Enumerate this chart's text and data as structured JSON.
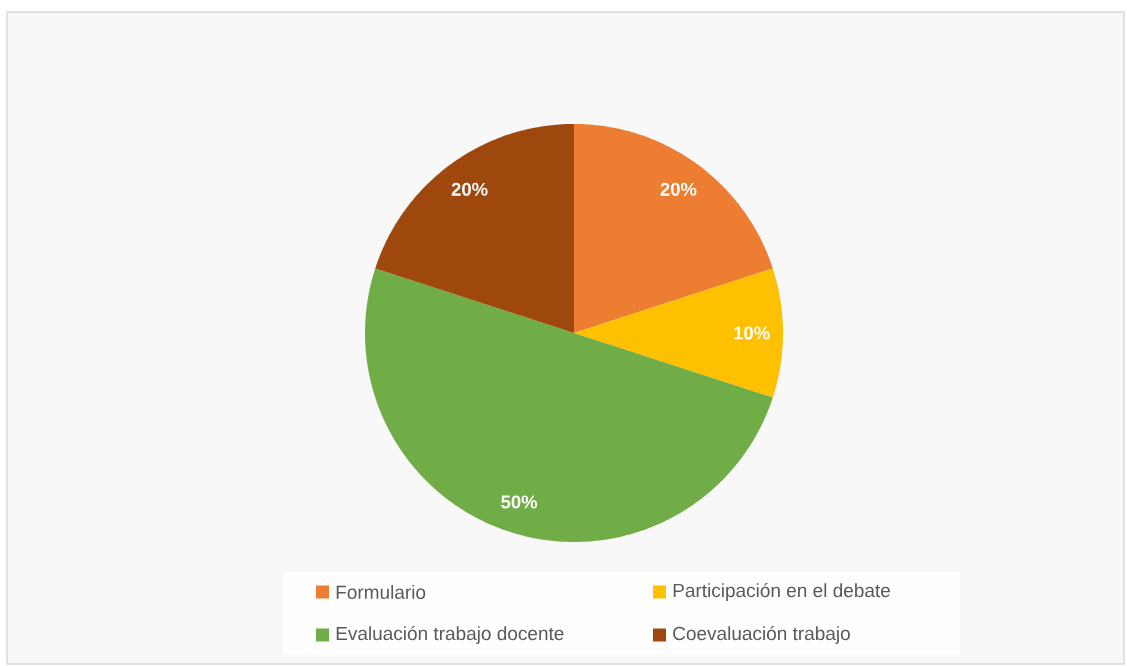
{
  "chart_data": {
    "type": "pie",
    "categories": [
      "Formulario",
      "Participación en el debate",
      "Evaluación trabajo docente",
      "Coevaluación trabajo"
    ],
    "values": [
      20,
      10,
      50,
      20
    ],
    "colors": [
      "#ED7D31",
      "#FFC000",
      "#70AD47",
      "#9E480E"
    ],
    "value_labels": [
      "20%",
      "10%",
      "50%",
      "20%"
    ],
    "legend": "bottom"
  }
}
